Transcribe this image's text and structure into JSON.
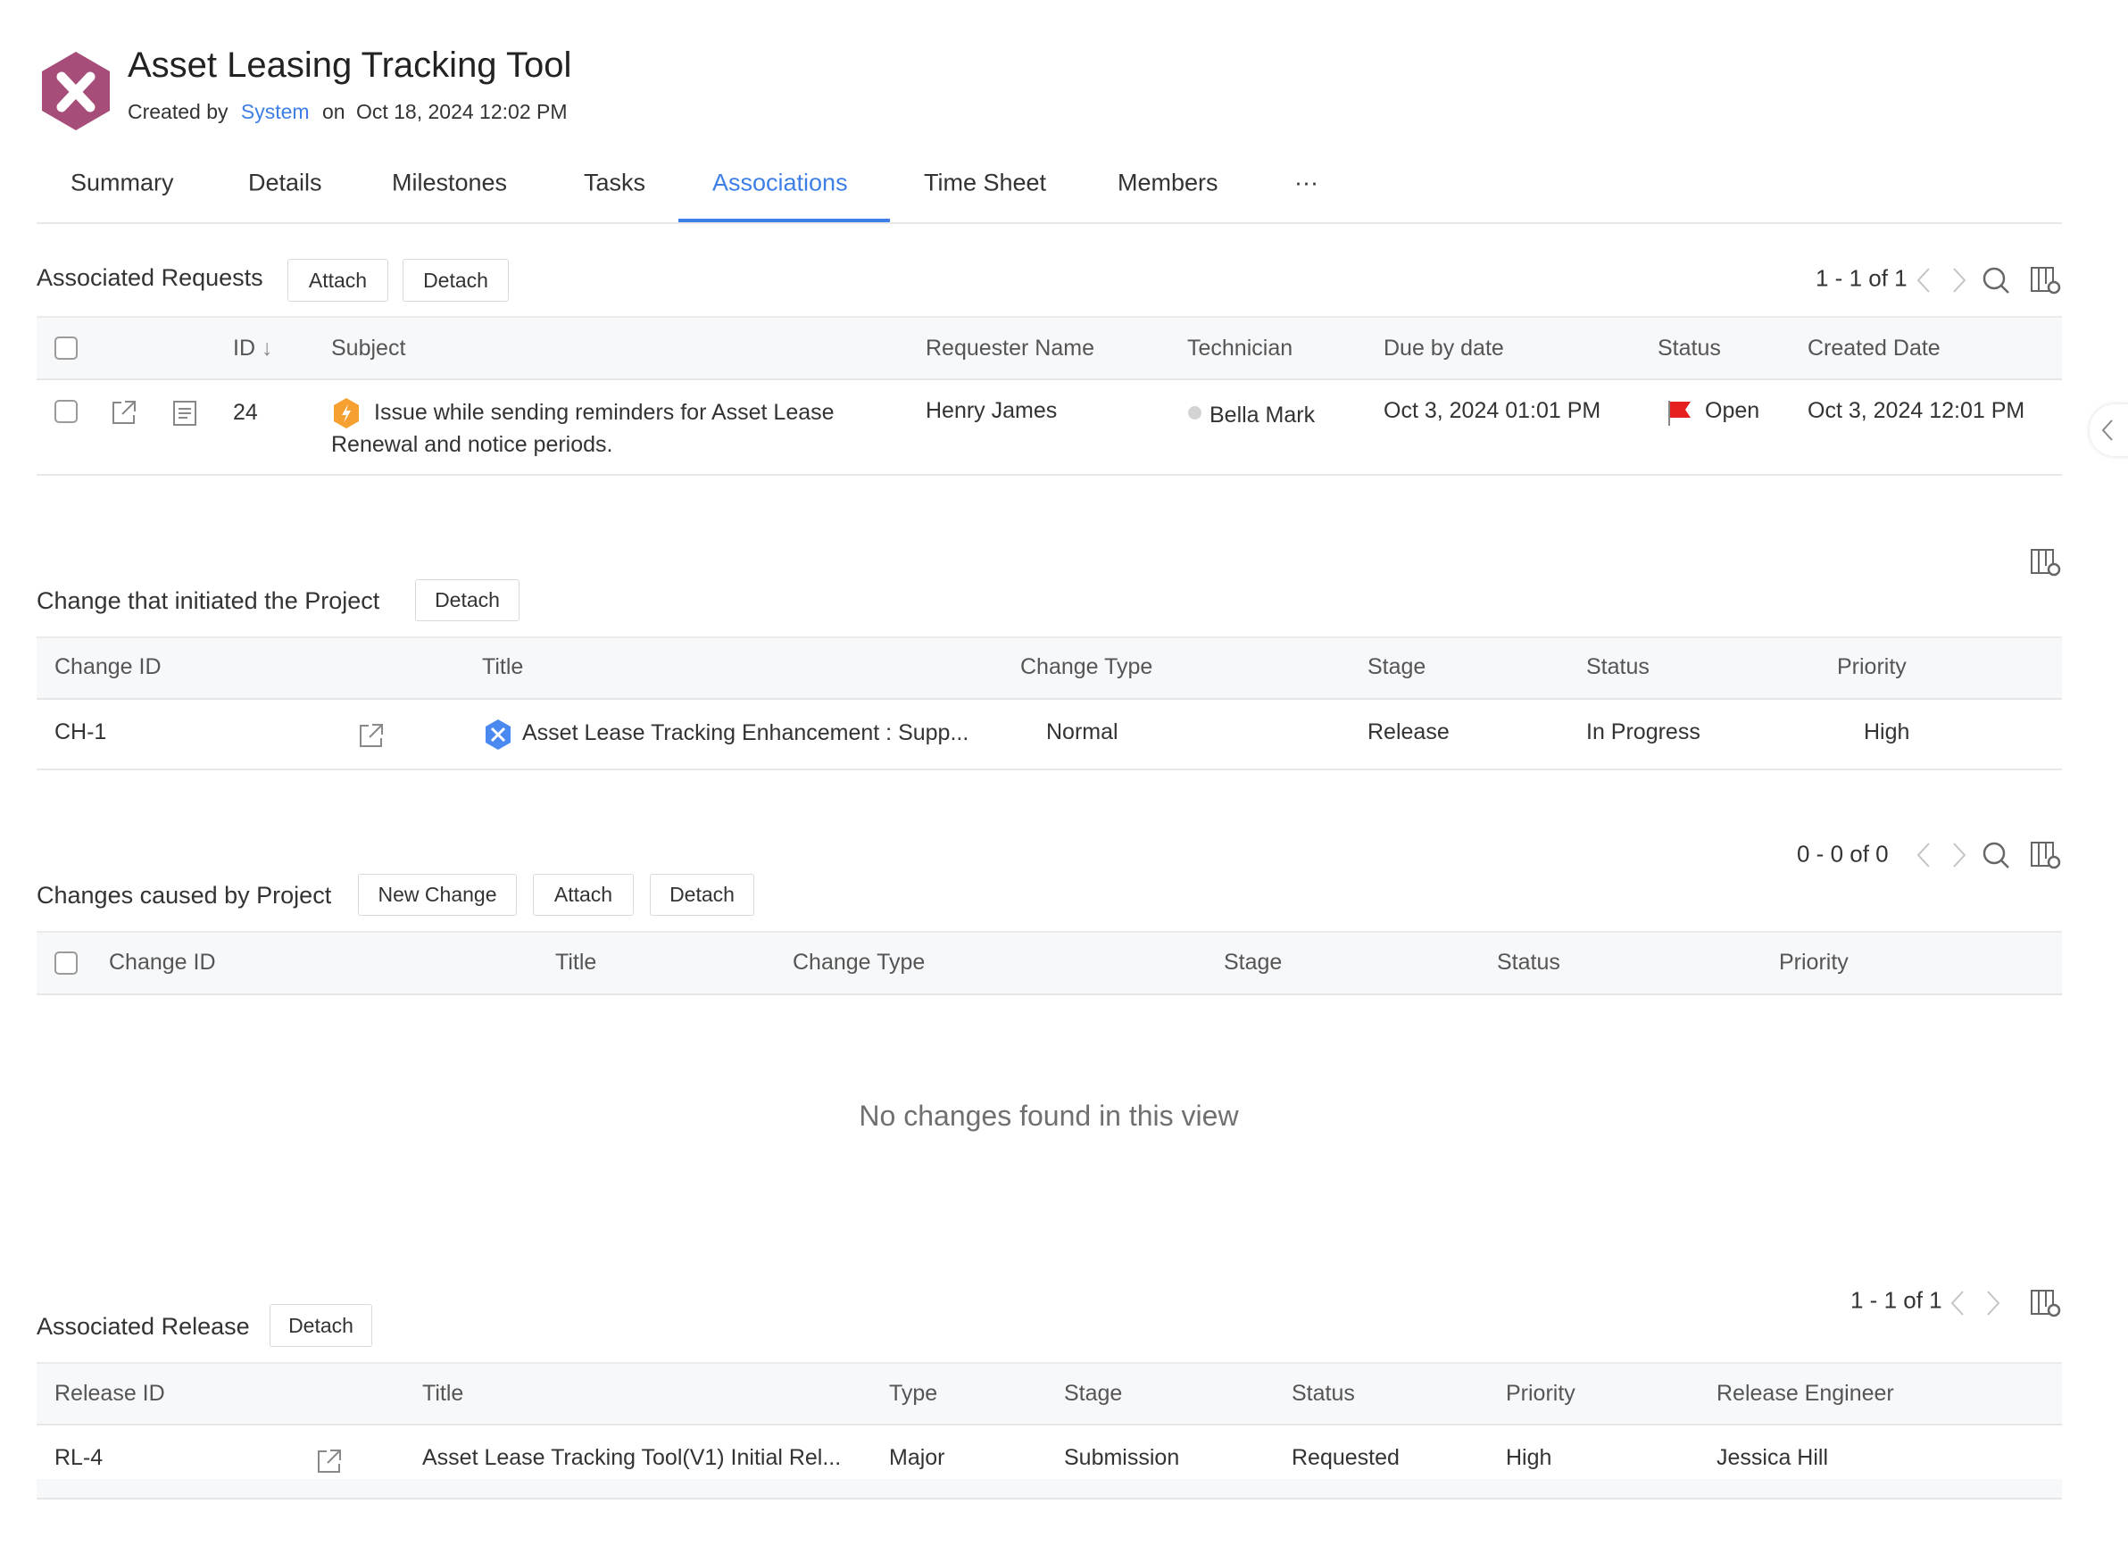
{
  "header": {
    "title": "Asset Leasing Tracking Tool",
    "created_by_label": "Created by",
    "created_by": "System",
    "on_label": "on",
    "created_on": "Oct 18, 2024 12:02 PM",
    "logo_color": "#a64d79"
  },
  "tabs": [
    {
      "label": "Summary"
    },
    {
      "label": "Details"
    },
    {
      "label": "Milestones"
    },
    {
      "label": "Tasks"
    },
    {
      "label": "Associations",
      "active": true
    },
    {
      "label": "Time Sheet"
    },
    {
      "label": "Members"
    },
    {
      "label": "···"
    }
  ],
  "accent_color": "#3d7fe6",
  "requests": {
    "title": "Associated Requests",
    "attach": "Attach",
    "detach": "Detach",
    "pagination": "1 - 1 of 1",
    "columns": [
      "ID",
      "Subject",
      "Requester Name",
      "Technician",
      "Due by date",
      "Status",
      "Created Date"
    ],
    "rows": [
      {
        "id": "24",
        "subject_line1": "Issue while sending reminders for Asset Lease",
        "subject_line2": "Renewal and notice periods.",
        "requester": "Henry James",
        "technician": "Bella Mark",
        "due": "Oct 3, 2024 01:01 PM",
        "status": "Open",
        "created": "Oct 3, 2024 12:01 PM"
      }
    ]
  },
  "initiating_change": {
    "title": "Change that initiated the Project",
    "detach": "Detach",
    "columns": [
      "Change ID",
      "Title",
      "Change Type",
      "Stage",
      "Status",
      "Priority"
    ],
    "rows": [
      {
        "id": "CH-1",
        "title": "Asset Lease Tracking Enhancement : Supp...",
        "type": "Normal",
        "stage": "Release",
        "status": "In Progress",
        "priority": "High"
      }
    ]
  },
  "caused_changes": {
    "title": "Changes caused by Project",
    "new_change": "New Change",
    "attach": "Attach",
    "detach": "Detach",
    "pagination": "0 - 0 of 0",
    "columns": [
      "Change ID",
      "Title",
      "Change Type",
      "Stage",
      "Status",
      "Priority"
    ],
    "empty_message": "No changes found in this view"
  },
  "release": {
    "title": "Associated Release",
    "detach": "Detach",
    "pagination": "1 - 1 of 1",
    "columns": [
      "Release ID",
      "Title",
      "Type",
      "Stage",
      "Status",
      "Priority",
      "Release Engineer"
    ],
    "rows": [
      {
        "id": "RL-4",
        "title": "Asset Lease Tracking Tool(V1) Initial Rel...",
        "type": "Major",
        "stage": "Submission",
        "status": "Requested",
        "priority": "High",
        "engineer": "Jessica Hill"
      }
    ]
  }
}
